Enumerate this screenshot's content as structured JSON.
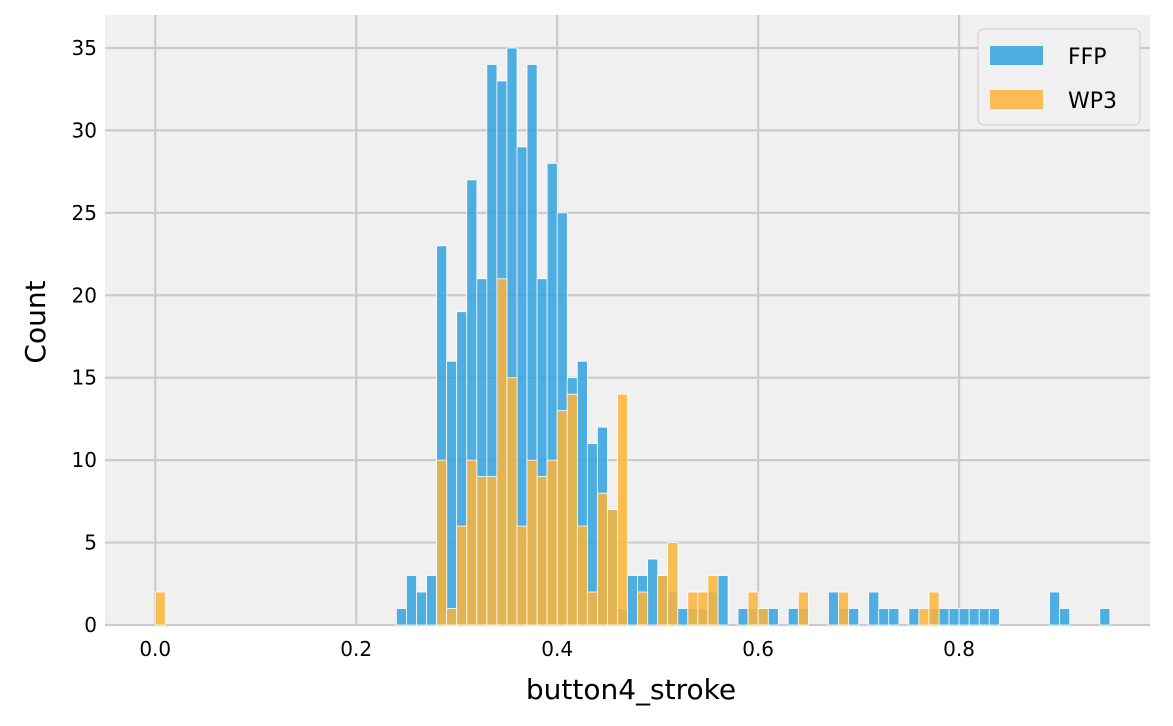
{
  "chart_data": {
    "type": "bar",
    "subtype": "overlapping-histogram",
    "title": "",
    "xlabel": "button4_stroke",
    "ylabel": "Count",
    "xlim": [
      -0.05,
      0.99
    ],
    "ylim": [
      0,
      37
    ],
    "grid": true,
    "legend_position": "top-right",
    "bin_width": 0.0101,
    "x_ticks": [
      {
        "value": 0.0,
        "label": "0.0"
      },
      {
        "value": 0.2,
        "label": "0.2"
      },
      {
        "value": 0.4,
        "label": "0.4"
      },
      {
        "value": 0.6,
        "label": "0.6"
      },
      {
        "value": 0.8,
        "label": "0.8"
      }
    ],
    "y_ticks": [
      {
        "value": 0,
        "label": "0"
      },
      {
        "value": 5,
        "label": "5"
      },
      {
        "value": 10,
        "label": "10"
      },
      {
        "value": 15,
        "label": "15"
      },
      {
        "value": 20,
        "label": "20"
      },
      {
        "value": 25,
        "label": "25"
      },
      {
        "value": 30,
        "label": "30"
      },
      {
        "value": 35,
        "label": "35"
      }
    ],
    "series": [
      {
        "name": "FFP",
        "color": "#31a1de",
        "bars": [
          {
            "x": 0.24,
            "count": 1
          },
          {
            "x": 0.25,
            "count": 3
          },
          {
            "x": 0.26,
            "count": 2
          },
          {
            "x": 0.27,
            "count": 3
          },
          {
            "x": 0.28,
            "count": 23
          },
          {
            "x": 0.29,
            "count": 16
          },
          {
            "x": 0.3,
            "count": 19
          },
          {
            "x": 0.31,
            "count": 27
          },
          {
            "x": 0.32,
            "count": 21
          },
          {
            "x": 0.33,
            "count": 34
          },
          {
            "x": 0.34,
            "count": 33
          },
          {
            "x": 0.35,
            "count": 35
          },
          {
            "x": 0.36,
            "count": 29
          },
          {
            "x": 0.37,
            "count": 34
          },
          {
            "x": 0.38,
            "count": 21
          },
          {
            "x": 0.39,
            "count": 28
          },
          {
            "x": 0.4,
            "count": 25
          },
          {
            "x": 0.41,
            "count": 15
          },
          {
            "x": 0.42,
            "count": 16
          },
          {
            "x": 0.43,
            "count": 11
          },
          {
            "x": 0.44,
            "count": 12
          },
          {
            "x": 0.45,
            "count": 7
          },
          {
            "x": 0.46,
            "count": 1
          },
          {
            "x": 0.47,
            "count": 3
          },
          {
            "x": 0.48,
            "count": 3
          },
          {
            "x": 0.49,
            "count": 4
          },
          {
            "x": 0.5,
            "count": 3
          },
          {
            "x": 0.51,
            "count": 2
          },
          {
            "x": 0.52,
            "count": 1
          },
          {
            "x": 0.53,
            "count": 1
          },
          {
            "x": 0.54,
            "count": 1
          },
          {
            "x": 0.55,
            "count": 2
          },
          {
            "x": 0.56,
            "count": 3
          },
          {
            "x": 0.58,
            "count": 1
          },
          {
            "x": 0.59,
            "count": 1
          },
          {
            "x": 0.6,
            "count": 1
          },
          {
            "x": 0.61,
            "count": 1
          },
          {
            "x": 0.63,
            "count": 1
          },
          {
            "x": 0.64,
            "count": 1
          },
          {
            "x": 0.67,
            "count": 2
          },
          {
            "x": 0.68,
            "count": 1
          },
          {
            "x": 0.69,
            "count": 1
          },
          {
            "x": 0.71,
            "count": 2
          },
          {
            "x": 0.72,
            "count": 1
          },
          {
            "x": 0.73,
            "count": 1
          },
          {
            "x": 0.75,
            "count": 1
          },
          {
            "x": 0.77,
            "count": 1
          },
          {
            "x": 0.78,
            "count": 1
          },
          {
            "x": 0.79,
            "count": 1
          },
          {
            "x": 0.8,
            "count": 1
          },
          {
            "x": 0.81,
            "count": 1
          },
          {
            "x": 0.82,
            "count": 1
          },
          {
            "x": 0.83,
            "count": 1
          },
          {
            "x": 0.89,
            "count": 2
          },
          {
            "x": 0.9,
            "count": 1
          },
          {
            "x": 0.94,
            "count": 1
          }
        ]
      },
      {
        "name": "WP3",
        "color": "#fcb43a",
        "bars": [
          {
            "x": 0.0,
            "count": 2
          },
          {
            "x": 0.28,
            "count": 10
          },
          {
            "x": 0.29,
            "count": 1
          },
          {
            "x": 0.3,
            "count": 6
          },
          {
            "x": 0.31,
            "count": 10
          },
          {
            "x": 0.32,
            "count": 9
          },
          {
            "x": 0.33,
            "count": 9
          },
          {
            "x": 0.34,
            "count": 21
          },
          {
            "x": 0.35,
            "count": 15
          },
          {
            "x": 0.36,
            "count": 6
          },
          {
            "x": 0.37,
            "count": 10
          },
          {
            "x": 0.38,
            "count": 9
          },
          {
            "x": 0.39,
            "count": 10
          },
          {
            "x": 0.4,
            "count": 13
          },
          {
            "x": 0.41,
            "count": 14
          },
          {
            "x": 0.42,
            "count": 6
          },
          {
            "x": 0.43,
            "count": 2
          },
          {
            "x": 0.44,
            "count": 8
          },
          {
            "x": 0.45,
            "count": 7
          },
          {
            "x": 0.46,
            "count": 14
          },
          {
            "x": 0.48,
            "count": 2
          },
          {
            "x": 0.5,
            "count": 3
          },
          {
            "x": 0.51,
            "count": 5
          },
          {
            "x": 0.53,
            "count": 2
          },
          {
            "x": 0.54,
            "count": 2
          },
          {
            "x": 0.55,
            "count": 3
          },
          {
            "x": 0.59,
            "count": 2
          },
          {
            "x": 0.6,
            "count": 1
          },
          {
            "x": 0.64,
            "count": 2
          },
          {
            "x": 0.68,
            "count": 2
          },
          {
            "x": 0.76,
            "count": 1
          },
          {
            "x": 0.77,
            "count": 2
          }
        ]
      }
    ]
  }
}
